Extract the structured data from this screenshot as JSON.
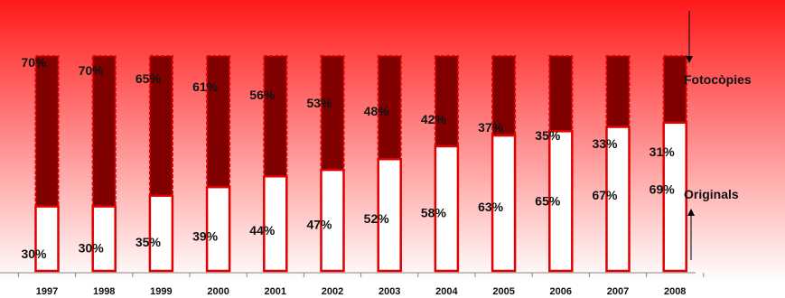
{
  "chart_data": {
    "type": "bar",
    "stacked": true,
    "percent_stacked": true,
    "categories": [
      "1997",
      "1998",
      "1999",
      "2000",
      "2001",
      "2002",
      "2003",
      "2004",
      "2005",
      "2006",
      "2007",
      "2008"
    ],
    "series": [
      {
        "name": "Originals",
        "values": [
          30,
          30,
          35,
          39,
          44,
          47,
          52,
          58,
          63,
          65,
          67,
          69
        ],
        "color": "#ffffff",
        "border": "#e00000"
      },
      {
        "name": "Fotocòpies",
        "values": [
          70,
          70,
          65,
          61,
          56,
          53,
          48,
          42,
          37,
          35,
          33,
          31
        ],
        "color": "#800000",
        "border": "#e00000"
      }
    ],
    "data_labels": {
      "Originals": [
        "30%",
        "30%",
        "35%",
        "39%",
        "44%",
        "47%",
        "52%",
        "58%",
        "63%",
        "65%",
        "67%",
        "69%"
      ],
      "Fotocòpies": [
        "70%",
        "70%",
        "65%",
        "61%",
        "56%",
        "53%",
        "48%",
        "42%",
        "37%",
        "35%",
        "33%",
        "31%"
      ]
    },
    "ylim": [
      0,
      100
    ],
    "legend": "right, with arrows",
    "background": "red-to-white vertical gradient",
    "colors": {
      "gradient_top": "#ff1a1a",
      "gradient_bottom": "#ffffff",
      "bar_border": "#e00000"
    }
  }
}
